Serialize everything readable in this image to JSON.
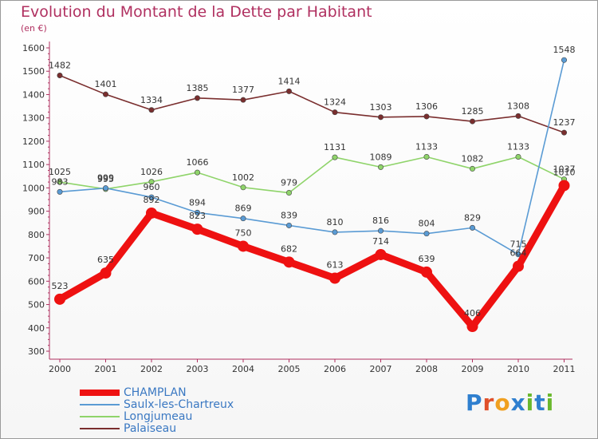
{
  "title": "Evolution du Montant de la Dette par Habitant",
  "unit": "(en €)",
  "logo": {
    "letters": [
      {
        "ch": "P",
        "color": "#2f7fcf"
      },
      {
        "ch": "r",
        "color": "#e0502a"
      },
      {
        "ch": "o",
        "color": "#f0a020"
      },
      {
        "ch": "x",
        "color": "#2f7fcf"
      },
      {
        "ch": "i",
        "color": "#6ab82e"
      },
      {
        "ch": "t",
        "color": "#2f7fcf"
      },
      {
        "ch": "i",
        "color": "#6ab82e"
      }
    ]
  },
  "chart_data": {
    "type": "line",
    "x": [
      "2000",
      "2001",
      "2002",
      "2003",
      "2004",
      "2005",
      "2006",
      "2007",
      "2008",
      "2009",
      "2010",
      "2011"
    ],
    "ylim": [
      300,
      1600
    ],
    "yticks": [
      300,
      400,
      500,
      600,
      700,
      800,
      900,
      1000,
      1100,
      1200,
      1300,
      1400,
      1500,
      1600
    ],
    "grid": false,
    "legend_position": "bottom-left",
    "series": [
      {
        "name": "Palaiseau",
        "color": "#7a2e2e",
        "values": [
          1482,
          1401,
          1334,
          1385,
          1377,
          1414,
          1324,
          1303,
          1306,
          1285,
          1308,
          1237
        ]
      },
      {
        "name": "Longjumeau",
        "color": "#8fd46a",
        "values": [
          1025,
          995,
          1026,
          1066,
          1002,
          979,
          1131,
          1089,
          1133,
          1082,
          1133,
          1037
        ]
      },
      {
        "name": "Saulx-les-Chartreux",
        "color": "#5a9bd4",
        "values": [
          983,
          999,
          960,
          894,
          869,
          839,
          810,
          816,
          804,
          829,
          715,
          1548
        ]
      },
      {
        "name": "CHAMPLAN",
        "color": "#ee1111",
        "values": [
          523,
          635,
          892,
          823,
          750,
          682,
          613,
          714,
          639,
          406,
          664,
          1010
        ]
      }
    ],
    "legend_order": [
      "CHAMPLAN",
      "Saulx-les-Chartreux",
      "Longjumeau",
      "Palaiseau"
    ]
  }
}
